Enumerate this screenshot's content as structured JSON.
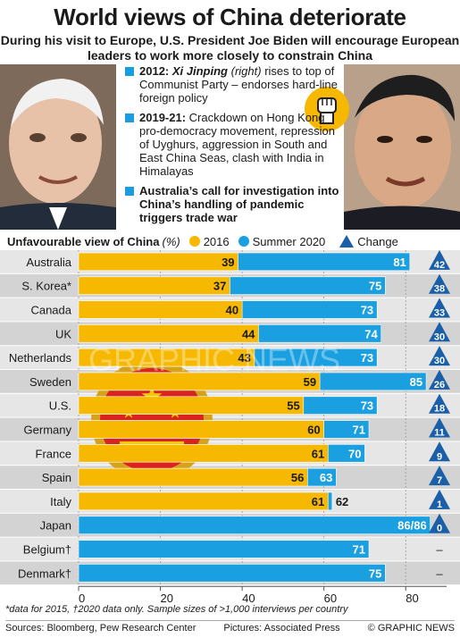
{
  "header": {
    "title": "World views of China deteriorate",
    "subtitle": "During his visit to Europe, U.S. President Joe Biden will encourage European leaders to work more closely to constrain China"
  },
  "bullets": [
    {
      "lead": "2012:",
      "lead2": "Xi Jinping",
      "paren": "(right)",
      "text": "rises to top of Communist Party – endorses hard-line foreign policy"
    },
    {
      "lead": "2019-21:",
      "text": "Crackdown on Hong Kong pro-democracy movement, repression of Uyghurs, aggression in South and East China Seas, clash with India in Himalayas"
    },
    {
      "lead": "Australia’s call for investigation into China’s handling of pandemic triggers trade war"
    }
  ],
  "legend": {
    "title": "Unfavourable view of China",
    "unit": "(%)",
    "s2016": "2016",
    "s2020": "Summer 2020",
    "change": "Change"
  },
  "colors": {
    "y2016": "#f6b800",
    "y2020": "#1aa0e0",
    "change": "#1a5fa8",
    "row_odd": "#e6e6e6",
    "row_even": "#d3d3d3"
  },
  "chart_data": {
    "type": "bar",
    "categories": [
      "Australia",
      "S. Korea*",
      "Canada",
      "UK",
      "Netherlands",
      "Sweden",
      "U.S.",
      "Germany",
      "France",
      "Spain",
      "Italy",
      "Japan",
      "Belgium†",
      "Denmark†"
    ],
    "series": [
      {
        "name": "2016",
        "values": [
          39,
          37,
          40,
          44,
          43,
          59,
          55,
          60,
          61,
          56,
          61,
          86,
          null,
          null
        ]
      },
      {
        "name": "Summer 2020",
        "values": [
          81,
          75,
          73,
          74,
          73,
          85,
          73,
          71,
          70,
          63,
          62,
          86,
          71,
          75
        ]
      }
    ],
    "bar_labels": [
      "39|81",
      "37|75",
      "40|73",
      "44|74",
      "43|73",
      "59|85",
      "55|73",
      "60|71",
      "61|70",
      "56|63",
      "61|62",
      "86/86",
      "71",
      "75"
    ],
    "change": [
      "42",
      "38",
      "33",
      "30",
      "30",
      "26",
      "18",
      "11",
      "9",
      "7",
      "1",
      "0",
      "–",
      "–"
    ],
    "xlim": [
      0,
      90
    ],
    "xticks": [
      0,
      20,
      40,
      60,
      80
    ],
    "watermark": "GRAPHIC NEWS"
  },
  "footnote": "*data for 2015, †2020 data only. Sample sizes of >1,000 interviews per country",
  "footer": {
    "sources": "Sources: Bloomberg, Pew Research Center",
    "pictures": "Pictures: Associated Press",
    "credit": "© GRAPHIC NEWS"
  }
}
